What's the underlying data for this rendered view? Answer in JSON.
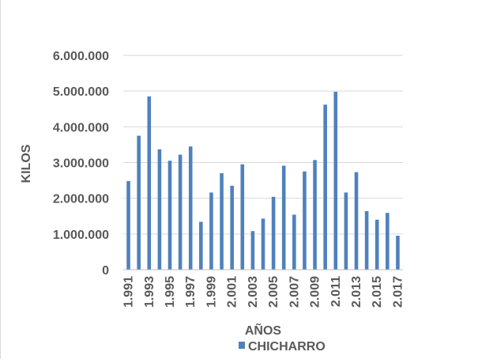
{
  "chart_data": {
    "type": "bar",
    "xlabel": "AÑOS",
    "ylabel": "KILOS",
    "ylim": [
      0,
      6000000
    ],
    "yticks": [
      0,
      1000000,
      2000000,
      3000000,
      4000000,
      5000000,
      6000000
    ],
    "ytick_labels": [
      "0",
      "1.000.000",
      "2.000.000",
      "3.000.000",
      "4.000.000",
      "5.000.000",
      "6.000.000"
    ],
    "categories": [
      1991,
      1992,
      1993,
      1994,
      1995,
      1996,
      1997,
      1998,
      1999,
      2000,
      2001,
      2002,
      2003,
      2004,
      2005,
      2006,
      2007,
      2008,
      2009,
      2010,
      2011,
      2012,
      2013,
      2014,
      2015,
      2016,
      2017
    ],
    "xtick_labels": [
      "1.991",
      "1.993",
      "1.995",
      "1.997",
      "1.999",
      "2.001",
      "2.003",
      "2.005",
      "2.007",
      "2.009",
      "2.011",
      "2.013",
      "2.015",
      "2.017"
    ],
    "series": [
      {
        "name": "CHICHARRO",
        "values": [
          2480000,
          3750000,
          4850000,
          3370000,
          3050000,
          3220000,
          3450000,
          1340000,
          2160000,
          2700000,
          2350000,
          2950000,
          1080000,
          1430000,
          2040000,
          2910000,
          1540000,
          2750000,
          3070000,
          4620000,
          4980000,
          2160000,
          2730000,
          1640000,
          1400000,
          1590000,
          950000
        ]
      }
    ],
    "grid": true,
    "legend": "bottom",
    "colors": {
      "bar": "#4f81bd",
      "grid": "#d9d9d9",
      "axis": "#bfbfbf",
      "text": "#595959"
    }
  }
}
